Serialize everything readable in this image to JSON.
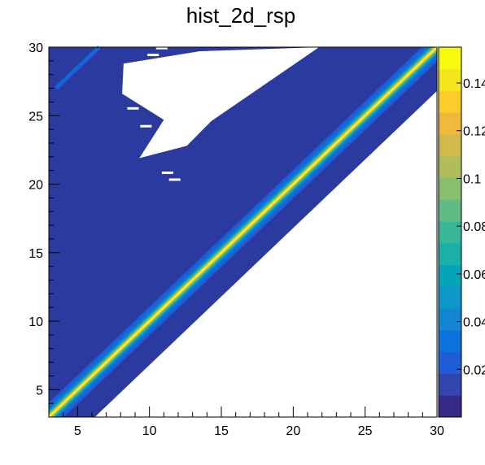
{
  "chart_data": {
    "type": "heatmap",
    "title": "hist_2d_rsp",
    "xlabel": "",
    "ylabel": "",
    "xlim": [
      3,
      30
    ],
    "ylim": [
      3,
      30
    ],
    "x_ticks": [
      5,
      10,
      15,
      20,
      25,
      30
    ],
    "y_ticks": [
      5,
      10,
      15,
      20,
      25,
      30
    ],
    "colorbar": {
      "range": [
        0,
        0.155
      ],
      "tick_values": [
        0.02,
        0.04,
        0.06,
        0.08,
        0.1,
        0.12,
        0.14
      ],
      "tick_labels": [
        "0.02",
        "0.04",
        "0.06",
        "0.08",
        "0.1",
        "0.12",
        "0.14"
      ]
    },
    "structure": {
      "diagonal_peak_value": 0.155,
      "diagonal_description": "peak along y = x",
      "band_lower_edge": "y = x - 3.2",
      "empty_region_below_band": true,
      "white_gap_region": "x 8-22, y 19-30 (sparse)",
      "faint_streak": "from (3.5, 27) to (6.5, 30)"
    },
    "colors": {
      "background_fill": "#2b3a9e",
      "palette": [
        "#352a87",
        "#3145ac",
        "#1f5dd6",
        "#0c72dc",
        "#1484d4",
        "#0d96c8",
        "#06a4b9",
        "#1bafaa",
        "#38b698",
        "#5fbc85",
        "#89be6f",
        "#b1bc5c",
        "#d1b94a",
        "#f0b93b",
        "#fbcd2b",
        "#f5e51c",
        "#f9fb0e"
      ]
    }
  }
}
